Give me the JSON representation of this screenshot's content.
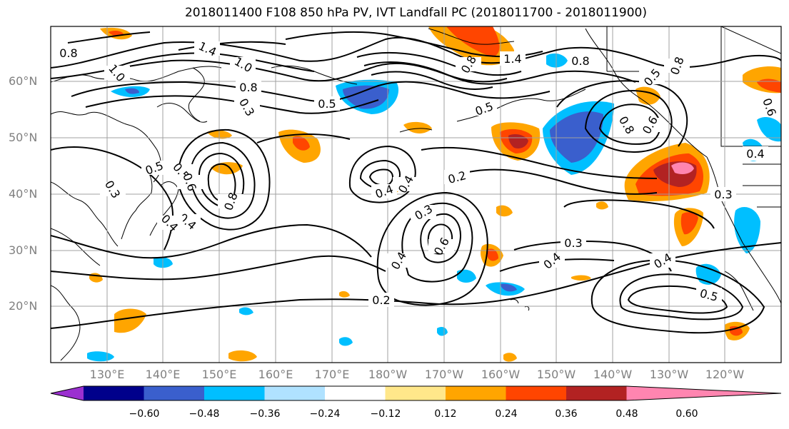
{
  "title": "2018011400 F108 850 hPa PV, IVT Landfall PC (2018011700 - 2018011900)",
  "lat_labels": [
    "60°N",
    "50°N",
    "40°N",
    "30°N",
    "20°N"
  ],
  "lon_labels": [
    "130°E",
    "140°E",
    "150°E",
    "160°E",
    "170°E",
    "180°W",
    "170°W",
    "160°W",
    "150°W",
    "140°W",
    "130°W",
    "120°W"
  ],
  "contour_labels": [
    "0.8",
    "1.4",
    "1.0",
    "1.0",
    "0.8",
    "0.3",
    "0.5",
    "0.8",
    "1.4",
    "0.8",
    "0.5",
    "0.5",
    "0.8",
    "0.8",
    "0.6",
    "0.6",
    "0.4",
    "0.5",
    "0.3",
    "0.5",
    "0.4",
    "0.6",
    "0.8",
    "0.4",
    "0.4",
    "0.2",
    "0.3",
    "0.4",
    "0.6",
    "0.3",
    "0.4",
    "0.3",
    "0.2",
    "0.4",
    "0.5",
    "0.4"
  ],
  "colorbar": {
    "ticks": [
      "−0.60",
      "−0.48",
      "−0.36",
      "−0.24",
      "−0.12",
      "0.12",
      "0.24",
      "0.36",
      "0.48",
      "0.60"
    ],
    "colors": [
      "#9b30d0",
      "#00008b",
      "#3a5fcd",
      "#00bfff",
      "#b0e2ff",
      "#ffffff",
      "#ffe78a",
      "#ffa500",
      "#ff4500",
      "#b22222",
      "#ff85b0"
    ]
  }
}
